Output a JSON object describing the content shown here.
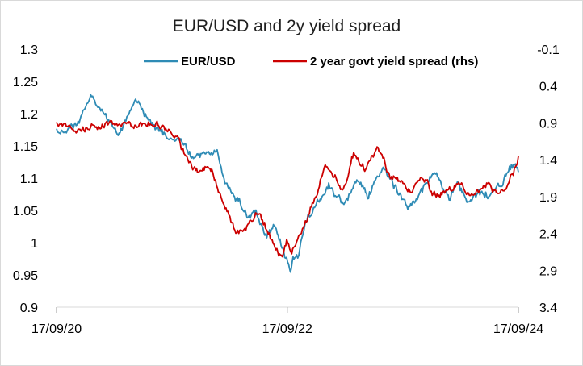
{
  "chart_data": {
    "type": "line",
    "title": "EUR/USD and 2y yield spread",
    "x_ticks": [
      "17/09/20",
      "17/09/22",
      "17/09/24"
    ],
    "x_range": [
      "2020-09-17",
      "2024-09-17"
    ],
    "y_left": {
      "ylim": [
        0.9,
        1.3
      ],
      "ticks": [
        "1.3",
        "1.25",
        "1.2",
        "1.15",
        "1.1",
        "1.05",
        "1",
        "0.95",
        "0.9"
      ]
    },
    "y_right": {
      "ylim": [
        -0.1,
        3.4
      ],
      "inverted": true,
      "ticks": [
        "-0.1",
        "0.4",
        "0.9",
        "1.4",
        "1.9",
        "2.4",
        "2.9",
        "3.4"
      ]
    },
    "grid": false,
    "legend_position": "top",
    "series": [
      {
        "name": "EUR/USD",
        "axis": "left",
        "color": "#2e8bb5",
        "x": [
          "2020-09-17",
          "2020-11-15",
          "2021-01-06",
          "2021-02-01",
          "2021-03-31",
          "2021-05-25",
          "2021-07-01",
          "2021-08-20",
          "2021-10-15",
          "2021-11-24",
          "2022-01-05",
          "2022-02-10",
          "2022-03-07",
          "2022-04-27",
          "2022-05-13",
          "2022-06-10",
          "2022-07-14",
          "2022-08-10",
          "2022-08-25",
          "2022-09-27",
          "2022-10-05",
          "2022-10-20",
          "2022-11-15",
          "2022-12-15",
          "2023-01-26",
          "2023-03-15",
          "2023-04-25",
          "2023-06-01",
          "2023-07-17",
          "2023-08-20",
          "2023-10-03",
          "2023-11-15",
          "2023-12-27",
          "2024-02-14",
          "2024-03-08",
          "2024-04-16",
          "2024-05-15",
          "2024-06-15",
          "2024-07-15",
          "2024-08-05",
          "2024-08-26",
          "2024-09-17"
        ],
        "values": [
          1.17,
          1.18,
          1.23,
          1.21,
          1.17,
          1.22,
          1.19,
          1.17,
          1.16,
          1.13,
          1.14,
          1.14,
          1.09,
          1.06,
          1.04,
          1.05,
          1.01,
          1.03,
          1.0,
          0.96,
          0.98,
          0.98,
          1.03,
          1.06,
          1.09,
          1.06,
          1.1,
          1.07,
          1.12,
          1.09,
          1.05,
          1.08,
          1.11,
          1.07,
          1.09,
          1.06,
          1.08,
          1.07,
          1.09,
          1.1,
          1.12,
          1.11
        ]
      },
      {
        "name": "2 year govt yield spread (rhs)",
        "axis": "right",
        "color": "#cc0000",
        "x": [
          "2020-09-17",
          "2020-11-15",
          "2021-01-15",
          "2021-04-01",
          "2021-06-01",
          "2021-08-01",
          "2021-10-01",
          "2021-12-01",
          "2022-01-15",
          "2022-03-01",
          "2022-04-10",
          "2022-05-15",
          "2022-06-15",
          "2022-07-10",
          "2022-08-15",
          "2022-09-01",
          "2022-09-15",
          "2022-10-01",
          "2022-11-10",
          "2022-12-15",
          "2023-01-15",
          "2023-02-15",
          "2023-03-10",
          "2023-03-25",
          "2023-04-15",
          "2023-05-20",
          "2023-07-01",
          "2023-08-01",
          "2023-09-15",
          "2023-10-15",
          "2023-11-15",
          "2024-01-01",
          "2024-02-15",
          "2024-03-15",
          "2024-04-15",
          "2024-05-20",
          "2024-06-15",
          "2024-07-15",
          "2024-08-15",
          "2024-09-01",
          "2024-09-17"
        ],
        "values": [
          0.9,
          1.0,
          0.95,
          0.9,
          0.95,
          0.93,
          1.1,
          1.55,
          1.5,
          2.0,
          2.4,
          2.3,
          2.1,
          2.3,
          2.6,
          2.75,
          2.5,
          2.65,
          2.3,
          1.9,
          1.5,
          1.6,
          1.8,
          1.65,
          1.3,
          1.55,
          1.2,
          1.6,
          1.7,
          1.85,
          1.6,
          1.9,
          1.8,
          1.7,
          1.9,
          1.8,
          1.7,
          1.9,
          1.75,
          1.55,
          1.35
        ]
      }
    ]
  }
}
